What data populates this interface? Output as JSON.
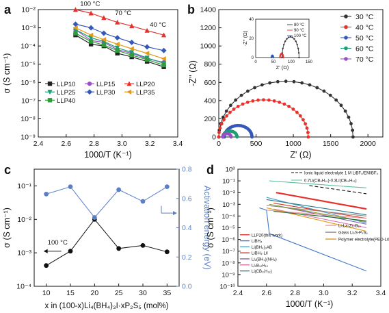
{
  "chart_data": [
    {
      "panel": "a",
      "type": "line",
      "xlabel": "1000/T (K⁻¹)",
      "ylabel": "σ (S cm⁻¹)",
      "xlim": [
        2.4,
        3.4
      ],
      "ylim_log10": [
        -9,
        -2
      ],
      "xticks": [
        "2.4",
        "2.6",
        "2.8",
        "3.0",
        "3.2",
        "3.4"
      ],
      "yticks": [
        "10⁻⁹",
        "10⁻⁸",
        "10⁻⁷",
        "10⁻⁶",
        "10⁻⁵",
        "10⁻⁴",
        "10⁻³",
        "10⁻²"
      ],
      "x": [
        2.667,
        2.778,
        2.87,
        2.967,
        3.07,
        3.18,
        3.3
      ],
      "series": [
        {
          "name": "LLP10",
          "color": "#222222",
          "marker": "square",
          "log10_values": [
            -3.4,
            -3.9,
            -4.0,
            -4.4,
            -4.6,
            -4.85,
            -5.15
          ]
        },
        {
          "name": "LLP15",
          "color": "#9a4fc4",
          "marker": "circle",
          "log10_values": [
            -3.1,
            -3.7,
            -3.8,
            -4.2,
            -4.4,
            -4.7,
            -4.9
          ]
        },
        {
          "name": "LLP20",
          "color": "#e5322d",
          "marker": "triangle",
          "log10_values": [
            -2.0,
            -2.2,
            -2.45,
            -2.7,
            -2.9,
            -3.15,
            -3.4
          ]
        },
        {
          "name": "LLP25",
          "color": "#1a9e77",
          "marker": "triangle-down",
          "log10_values": [
            -3.1,
            -3.55,
            -3.75,
            -4.1,
            -4.35,
            -4.65,
            -4.95
          ]
        },
        {
          "name": "LLP30",
          "color": "#3457b8",
          "marker": "diamond",
          "log10_values": [
            -2.8,
            -3.0,
            -3.3,
            -3.55,
            -3.8,
            -4.05,
            -4.25
          ]
        },
        {
          "name": "LLP35",
          "color": "#e29a17",
          "marker": "triangle-left",
          "log10_values": [
            -3.0,
            -3.4,
            -3.65,
            -3.9,
            -4.15,
            -4.4,
            -4.7
          ]
        },
        {
          "name": "LLP40",
          "color": "#2e9d3a",
          "marker": "square",
          "log10_values": [
            -3.3,
            -3.75,
            -3.95,
            -4.25,
            -4.5,
            -4.75,
            -5.05
          ]
        }
      ],
      "annotations": [
        "100 °C",
        "70 °C",
        "40 °C"
      ],
      "legend": "bottom"
    },
    {
      "panel": "b",
      "type": "scatter",
      "xlabel": "Z' (Ω)",
      "ylabel": "-Z'' (Ω)",
      "xlim": [
        0,
        2200
      ],
      "ylim": [
        0,
        1400
      ],
      "xticks": [
        "0",
        "500",
        "1000",
        "1500",
        "2000"
      ],
      "yticks": [
        "0",
        "200",
        "400",
        "600",
        "800",
        "1000",
        "1200",
        "1400"
      ],
      "series": [
        {
          "name": "30 °C",
          "color": "#333333",
          "center": 900,
          "radius": 900
        },
        {
          "name": "40 °C",
          "color": "#e5322d",
          "center": 600,
          "radius": 600
        },
        {
          "name": "50 °C",
          "color": "#3457b8",
          "center": 260,
          "radius": 185
        },
        {
          "name": "60 °C",
          "color": "#1a9e77",
          "center": 150,
          "radius": 95
        },
        {
          "name": "70 °C",
          "color": "#9a4fc4",
          "center": 110,
          "radius": 55
        }
      ],
      "inset": {
        "xlabel": "Z' (Ω)",
        "ylabel": "-Z'' (Ω)",
        "xlim": [
          0,
          150
        ],
        "ylim": [
          0,
          40
        ],
        "xticks": [
          "0",
          "50",
          "100",
          "150"
        ],
        "yticks": [
          "0",
          "20",
          "40"
        ],
        "series": [
          {
            "name": "80 °C",
            "color": "#333333",
            "center": 98,
            "radius": 24
          },
          {
            "name": "90 °C",
            "color": "#e5322d",
            "center": 73,
            "radius": 4.5
          },
          {
            "name": "100 °C",
            "color": "#3457b8",
            "center": 47,
            "radius": 2.5
          }
        ]
      },
      "legend": "top-right"
    },
    {
      "panel": "c",
      "type": "line",
      "xlabel": "x in (100-x)Li₄(BH₄)₃I·xP₂S₅ (mol%)",
      "ylabel": "σ (S cm⁻¹)",
      "y2label": "Activation energy (eV)",
      "categories": [
        "10",
        "15",
        "20",
        "25",
        "30",
        "35"
      ],
      "ylim_log10": [
        -4,
        -0.5
      ],
      "y2lim": [
        0,
        0.8
      ],
      "yticks": [
        "10⁻⁴",
        "10⁻³",
        "10⁻²",
        "10⁻¹"
      ],
      "y2ticks": [
        "0.0",
        "0.2",
        "0.4",
        "0.6",
        "0.8"
      ],
      "series": [
        {
          "name": "σ at 100 °C",
          "color": "#111111",
          "log10_values": [
            -3.38,
            -2.95,
            -2.0,
            -2.87,
            -2.78,
            -2.97
          ]
        },
        {
          "name": "Activation energy",
          "color": "#5b7fc7",
          "values": [
            0.63,
            0.68,
            0.47,
            0.66,
            0.58,
            0.68
          ]
        }
      ],
      "annotations": [
        "100 °C"
      ]
    },
    {
      "panel": "d",
      "type": "line",
      "xlabel": "1000/T (K⁻¹)",
      "ylabel": "σ (S cm⁻¹)",
      "xlim": [
        2.4,
        3.4
      ],
      "ylim_log10": [
        -10,
        0
      ],
      "xticks": [
        "2.4",
        "2.6",
        "2.8",
        "3.0",
        "3.2",
        "3.4"
      ],
      "yticks": [
        "10⁻¹⁰",
        "10⁻⁹",
        "10⁻⁸",
        "10⁻⁷",
        "10⁻⁶",
        "10⁻⁵",
        "10⁻⁴",
        "10⁻³",
        "10⁻²",
        "10⁻¹",
        "10⁰"
      ],
      "series": [
        {
          "name": "Ionic liquid electrolyte 1 M LiBF₄/EMIBF₄",
          "color": "#111111",
          "dash": true,
          "x": [
            2.9,
            3.3
          ],
          "log10_values": [
            -1.4,
            -2.1
          ]
        },
        {
          "name": "0.7Li(CB₉H₁₀)-0.3Li(CB₁₁H₁₂)",
          "color": "#5fbf9a",
          "x": [
            2.62,
            3.3
          ],
          "log10_values": [
            -1.0,
            -1.6
          ]
        },
        {
          "name": "LLP20(this work)",
          "color": "#e5322d",
          "x": [
            2.667,
            3.3
          ],
          "log10_values": [
            -2.0,
            -3.4
          ]
        },
        {
          "name": "LiBH₄",
          "color": "#3c78c8",
          "x": [
            2.55,
            2.6,
            2.62,
            3.3
          ],
          "log10_values": [
            -3.3,
            -3.5,
            -5.5,
            -8.7
          ]
        },
        {
          "name": "Li(BH₄)₃AB",
          "color": "#4aa3c8",
          "x": [
            2.6,
            3.3
          ],
          "log10_values": [
            -2.4,
            -4.6
          ]
        },
        {
          "name": "LiBH₄-LiI",
          "color": "#d6392a",
          "x": [
            2.65,
            3.3
          ],
          "log10_values": [
            -2.9,
            -4.2
          ]
        },
        {
          "name": "Li₂(BH₄)(NH₂)",
          "color": "#7f5fb0",
          "x": [
            2.7,
            3.3
          ],
          "log10_values": [
            -3.2,
            -4.7
          ]
        },
        {
          "name": "Li₂B₁₂H₁₂",
          "color": "#d973a8",
          "x": [
            2.65,
            3.3
          ],
          "log10_values": [
            -3.4,
            -5.0
          ]
        },
        {
          "name": "Li(CB₁₁H₁₂)",
          "color": "#2a7a8c",
          "x": [
            2.6,
            3.3
          ],
          "log10_values": [
            -2.6,
            -3.9
          ]
        },
        {
          "name": "Li₇La₃Zr₂O₁₂",
          "color": "#f29a9a",
          "x": [
            2.6,
            3.3
          ],
          "log10_values": [
            -3.5,
            -4.2
          ]
        },
        {
          "name": "Glass Li₂S-P₂S₅",
          "color": "#888888",
          "x": [
            2.6,
            3.3
          ],
          "log10_values": [
            -3.1,
            -4.0
          ]
        },
        {
          "name": "Polymer electrolyte(PEO-LiClO₄)",
          "color": "#e29a17",
          "x": [
            2.6,
            3.3
          ],
          "log10_values": [
            -3.3,
            -5.3
          ]
        },
        {
          "name": "",
          "color": "#8a9a2a",
          "x": [
            2.62,
            3.3
          ],
          "log10_values": [
            -3.0,
            -4.5
          ]
        },
        {
          "name": "",
          "color": "#1f6e3a",
          "x": [
            2.65,
            3.3
          ],
          "log10_values": [
            -3.6,
            -4.4
          ]
        }
      ]
    }
  ],
  "panel_labels": [
    "a",
    "b",
    "c",
    "d"
  ],
  "legend_a": [
    "LLP10",
    "LLP15",
    "LLP20",
    "LLP25",
    "LLP30",
    "LLP35",
    "LLP40"
  ],
  "legend_b": [
    "30 °C",
    "40 °C",
    "50 °C",
    "60 °C",
    "70 °C"
  ],
  "legend_b_inset": [
    "80 °C",
    "90 °C",
    "100 °C"
  ]
}
